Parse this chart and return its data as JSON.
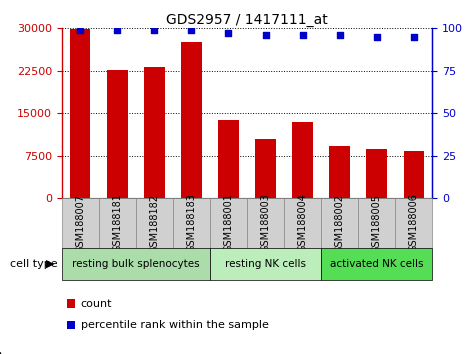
{
  "title": "GDS2957 / 1417111_at",
  "samples": [
    "GSM188007",
    "GSM188181",
    "GSM188182",
    "GSM188183",
    "GSM188001",
    "GSM188003",
    "GSM188004",
    "GSM188002",
    "GSM188005",
    "GSM188006"
  ],
  "counts": [
    29800,
    22700,
    23100,
    27500,
    13800,
    10500,
    13500,
    9200,
    8700,
    8400
  ],
  "percentiles": [
    99,
    99,
    99,
    99,
    97,
    96,
    96,
    96,
    95,
    95
  ],
  "bar_color": "#cc0000",
  "dot_color": "#0000cc",
  "ylim_left": [
    0,
    30000
  ],
  "ylim_right": [
    0,
    100
  ],
  "yticks_left": [
    0,
    7500,
    15000,
    22500,
    30000
  ],
  "yticks_right": [
    0,
    25,
    50,
    75,
    100
  ],
  "cell_groups": [
    {
      "label": "resting bulk splenocytes",
      "start": 0,
      "end": 4,
      "color": "#aaddaa"
    },
    {
      "label": "resting NK cells",
      "start": 4,
      "end": 7,
      "color": "#bbeebb"
    },
    {
      "label": "activated NK cells",
      "start": 7,
      "end": 10,
      "color": "#55dd55"
    }
  ],
  "cell_type_label": "cell type",
  "legend_count_label": "count",
  "legend_pct_label": "percentile rank within the sample",
  "sample_bg_color": "#d0d0d0",
  "sample_border_color": "#888888",
  "plot_bg": "#ffffff",
  "tick_label_fontsize": 7,
  "bar_width": 0.55
}
